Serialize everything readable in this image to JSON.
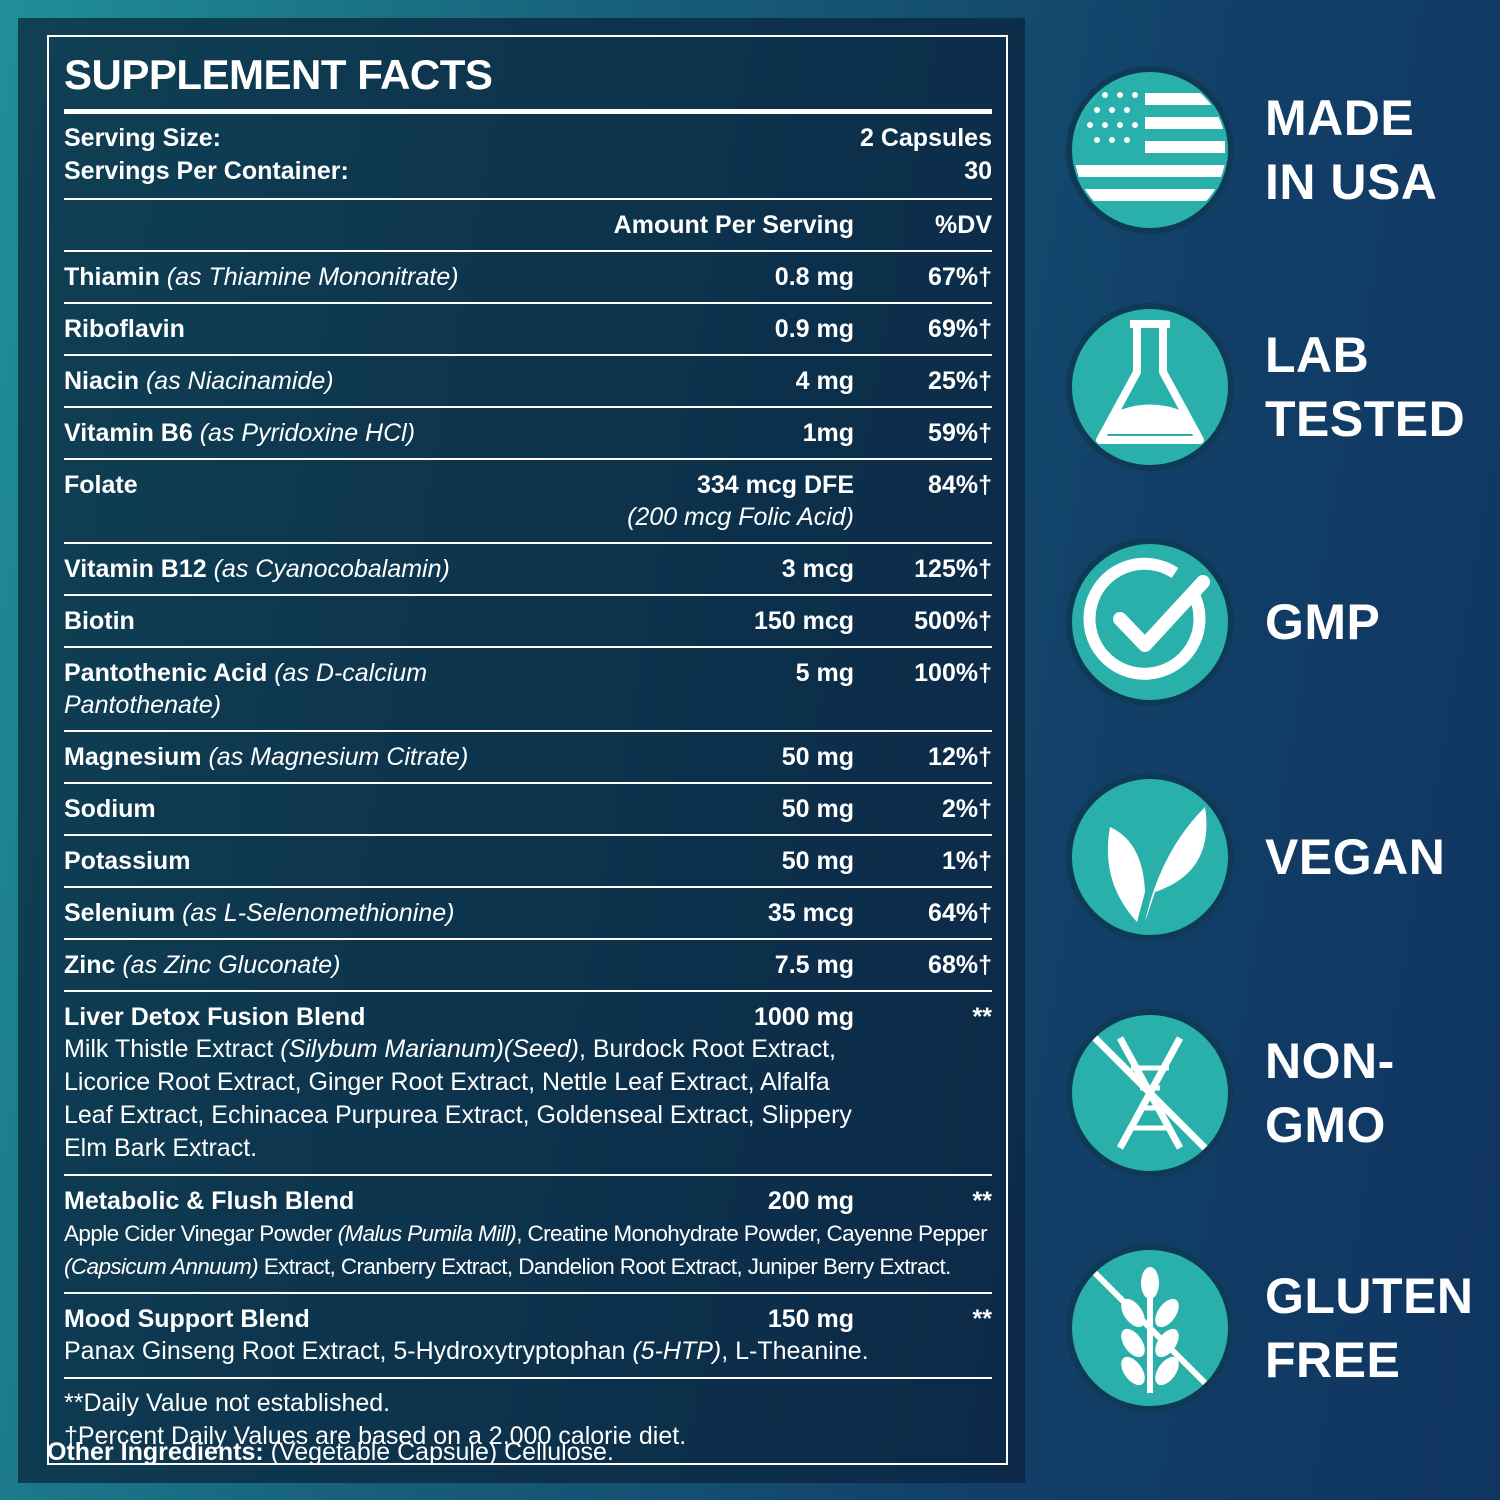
{
  "facts": {
    "title": "SUPPLEMENT FACTS",
    "serving_size_label": "Serving Size:",
    "serving_size": "2 Capsules",
    "servings_label": "Servings Per Container:",
    "servings": "30",
    "header": {
      "amount": "Amount Per Serving",
      "dv": "%DV"
    },
    "rows": [
      {
        "name": "Thiamin",
        "note": "(as Thiamine Mononitrate)",
        "amount": "0.8 mg",
        "dv": "67%†"
      },
      {
        "name": "Riboflavin",
        "amount": "0.9 mg",
        "dv": "69%†"
      },
      {
        "name": "Niacin",
        "note": "(as Niacinamide)",
        "amount": "4 mg",
        "dv": "25%†"
      },
      {
        "name": "Vitamin B6",
        "note": "(as Pyridoxine HCl)",
        "amount": "1mg",
        "dv": "59%†"
      },
      {
        "name": "Folate",
        "amount": "334 mcg DFE",
        "amount_note": "(200 mcg Folic Acid)",
        "dv": "84%†"
      },
      {
        "name": "Vitamin B12",
        "note": "(as Cyanocobalamin)",
        "amount": "3 mcg",
        "dv": "125%†"
      },
      {
        "name": "Biotin",
        "amount": "150 mcg",
        "dv": "500%†"
      },
      {
        "name": "Pantothenic Acid",
        "note": "(as D-calcium Pantothenate)",
        "amount": "5 mg",
        "dv": "100%†"
      },
      {
        "name": "Magnesium",
        "note": "(as Magnesium Citrate)",
        "amount": "50 mg",
        "dv": "12%†"
      },
      {
        "name": "Sodium",
        "amount": "50 mg",
        "dv": "2%†"
      },
      {
        "name": "Potassium",
        "amount": "50 mg",
        "dv": "1%†"
      },
      {
        "name": "Selenium",
        "note": "(as L-Selenomethionine)",
        "amount": "35 mcg",
        "dv": "64%†"
      },
      {
        "name": "Zinc",
        "note": "(as Zinc Gluconate)",
        "amount": "7.5 mg",
        "dv": "68%†"
      }
    ],
    "blends": [
      {
        "name": "Liver Detox Fusion Blend",
        "amount": "1000 mg",
        "dv": "**",
        "condensed": false,
        "ingredients": [
          {
            "text": "Milk Thistle Extract "
          },
          {
            "text": "(Silybum Marianum)(Seed)",
            "italic": true
          },
          {
            "text": ", Burdock Root Extract, Licorice Root Extract, Ginger Root Extract, Nettle Leaf Extract, Alfalfa Leaf Extract, Echinacea Purpurea Extract, Goldenseal Extract, Slippery Elm Bark Extract."
          }
        ]
      },
      {
        "name": "Metabolic & Flush Blend",
        "amount": "200 mg",
        "dv": "**",
        "condensed": true,
        "ingredients": [
          {
            "text": "Apple Cider Vinegar Powder "
          },
          {
            "text": "(Malus Pumila Mill)",
            "italic": true
          },
          {
            "text": ", Creatine Monohydrate Powder, Cayenne Pepper "
          },
          {
            "text": "(Capsicum Annuum)",
            "italic": true
          },
          {
            "text": " Extract, Cranberry Extract, Dandelion Root Extract, Juniper Berry Extract."
          }
        ]
      },
      {
        "name": "Mood Support Blend",
        "amount": "150 mg",
        "dv": "**",
        "condensed": false,
        "ingredients": [
          {
            "text": "Panax Ginseng Root Extract, 5-Hydroxytryptophan "
          },
          {
            "text": "(5-HTP)",
            "italic": true
          },
          {
            "text": ", L-Theanine."
          }
        ]
      }
    ],
    "footnotes": [
      "**Daily Value not established.",
      "†Percent Daily Values are based on a 2,000 calorie diet."
    ],
    "other_label": "Other Ingredients:",
    "other_text": "(Vegetable Capsule) Cellulose."
  },
  "badges": [
    {
      "lines": [
        "MADE",
        "IN USA"
      ]
    },
    {
      "lines": [
        "LAB",
        "TESTED"
      ]
    },
    {
      "lines": [
        "GMP"
      ]
    },
    {
      "lines": [
        "VEGAN"
      ]
    },
    {
      "lines": [
        "NON-",
        "GMO"
      ]
    },
    {
      "lines": [
        "GLUTEN",
        "FREE"
      ]
    }
  ]
}
